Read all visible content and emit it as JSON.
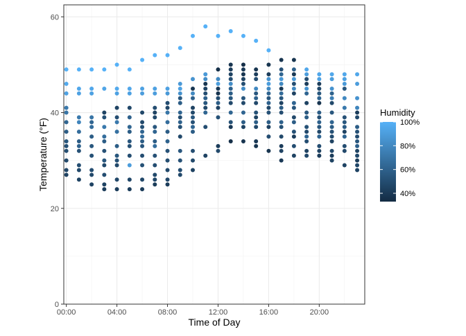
{
  "chart_data": {
    "type": "scatter",
    "xlabel": "Time of Day",
    "ylabel": "Temperature (°F)",
    "xlim": [
      -0.2,
      23.6
    ],
    "ylim": [
      0,
      62.5
    ],
    "x_ticks": [
      0,
      4,
      8,
      12,
      16,
      20
    ],
    "x_tick_labels": [
      "00:00",
      "04:00",
      "08:00",
      "12:00",
      "16:00",
      "20:00"
    ],
    "y_ticks": [
      0,
      20,
      40,
      60
    ],
    "y_tick_labels": [
      "0",
      "20",
      "40",
      "60"
    ],
    "grid": true,
    "legend": {
      "title": "Humidity",
      "position": "right",
      "breaks": [
        100,
        80,
        60,
        40
      ],
      "labels": [
        "100%",
        "80%",
        "60%",
        "40%"
      ],
      "range": [
        33,
        100
      ],
      "color_low": "#132B43",
      "color_high": "#56B1F7"
    },
    "points_by_hour": [
      {
        "x": 0,
        "y": [
          49,
          46,
          44,
          41,
          40,
          38,
          36,
          34,
          33,
          32,
          30,
          28,
          27
        ],
        "h": [
          100,
          96,
          92,
          72,
          70,
          62,
          58,
          55,
          52,
          50,
          48,
          47,
          45
        ]
      },
      {
        "x": 1,
        "y": [
          49,
          45,
          44,
          39,
          38,
          36,
          34,
          33,
          32,
          29,
          28,
          26
        ],
        "h": [
          100,
          95,
          92,
          72,
          78,
          66,
          58,
          60,
          52,
          50,
          48,
          45
        ]
      },
      {
        "x": 2,
        "y": [
          49,
          45,
          44,
          39,
          38,
          37,
          35,
          33,
          31,
          28,
          27,
          25
        ],
        "h": [
          100,
          95,
          92,
          70,
          62,
          66,
          58,
          55,
          52,
          50,
          48,
          45
        ]
      },
      {
        "x": 3,
        "y": [
          49,
          45,
          40,
          39,
          37,
          35,
          34,
          32,
          30,
          29,
          27,
          25,
          24
        ],
        "h": [
          100,
          94,
          45,
          52,
          72,
          66,
          58,
          52,
          55,
          48,
          50,
          45,
          42
        ]
      },
      {
        "x": 4,
        "y": [
          50,
          45,
          44,
          41,
          39,
          38,
          36,
          33,
          31,
          30,
          29,
          26,
          24
        ],
        "h": [
          100,
          96,
          92,
          45,
          50,
          72,
          68,
          58,
          55,
          52,
          48,
          47,
          42
        ]
      },
      {
        "x": 5,
        "y": [
          49,
          45,
          44,
          41,
          39,
          37,
          36,
          34,
          33,
          31,
          29,
          26,
          24
        ],
        "h": [
          100,
          95,
          92,
          47,
          60,
          62,
          58,
          55,
          52,
          50,
          90,
          47,
          42
        ]
      },
      {
        "x": 6,
        "y": [
          51,
          45,
          44,
          40,
          38,
          37,
          36,
          35,
          34,
          33,
          31,
          29,
          26,
          24
        ],
        "h": [
          100,
          92,
          90,
          47,
          48,
          52,
          62,
          66,
          58,
          55,
          50,
          52,
          47,
          42
        ]
      },
      {
        "x": 7,
        "y": [
          52,
          45,
          44,
          41,
          40,
          39,
          37,
          36,
          34,
          33,
          31,
          29,
          27,
          26,
          25
        ],
        "h": [
          100,
          92,
          90,
          50,
          45,
          48,
          55,
          62,
          58,
          66,
          52,
          50,
          48,
          47,
          42
        ]
      },
      {
        "x": 8,
        "y": [
          52,
          45,
          44,
          42,
          41,
          40,
          38,
          36,
          34,
          32,
          30,
          28,
          26,
          25
        ],
        "h": [
          100,
          92,
          88,
          50,
          47,
          70,
          66,
          58,
          60,
          52,
          50,
          48,
          47,
          42
        ]
      },
      {
        "x": 9,
        "y": [
          53.5,
          46,
          45,
          44,
          43,
          42,
          40,
          39,
          38,
          37,
          35,
          32,
          30,
          28,
          27
        ],
        "h": [
          100,
          88,
          92,
          84,
          55,
          58,
          62,
          50,
          60,
          52,
          48,
          55,
          52,
          50,
          48
        ]
      },
      {
        "x": 10,
        "y": [
          56,
          47,
          45,
          44,
          43,
          41,
          40,
          39,
          38,
          37,
          36,
          32,
          30,
          28
        ],
        "h": [
          100,
          85,
          38,
          80,
          60,
          45,
          48,
          55,
          52,
          62,
          58,
          50,
          48,
          45
        ]
      },
      {
        "x": 11,
        "y": [
          58,
          48,
          47,
          46,
          45,
          44,
          43,
          42,
          41,
          40,
          37,
          31
        ],
        "h": [
          100,
          88,
          82,
          38,
          45,
          50,
          60,
          55,
          48,
          62,
          50,
          45
        ]
      },
      {
        "x": 12,
        "y": [
          56,
          49,
          47,
          46,
          45,
          44,
          43,
          42,
          41,
          39,
          33,
          32
        ],
        "h": [
          100,
          35,
          80,
          90,
          40,
          38,
          50,
          58,
          45,
          52,
          42,
          48
        ]
      },
      {
        "x": 13,
        "y": [
          57,
          50,
          49,
          48,
          47,
          46,
          45,
          44,
          43,
          42,
          40,
          38,
          37,
          34
        ],
        "h": [
          100,
          38,
          42,
          45,
          50,
          82,
          60,
          58,
          55,
          48,
          62,
          52,
          40,
          35
        ]
      },
      {
        "x": 14,
        "y": [
          56,
          50,
          49,
          48,
          47,
          46,
          45,
          43,
          42,
          40,
          38,
          37,
          34
        ],
        "h": [
          100,
          35,
          40,
          38,
          45,
          50,
          82,
          55,
          48,
          62,
          58,
          45,
          38
        ]
      },
      {
        "x": 15,
        "y": [
          55,
          49,
          48,
          47,
          45,
          44,
          43,
          42,
          40,
          39,
          38,
          37,
          34,
          33
        ],
        "h": [
          100,
          38,
          42,
          50,
          80,
          55,
          60,
          48,
          52,
          45,
          58,
          48,
          40,
          38
        ]
      },
      {
        "x": 16,
        "y": [
          53,
          50,
          48,
          47,
          46,
          45,
          44,
          43,
          42,
          41,
          40,
          38,
          37,
          35,
          32
        ],
        "h": [
          100,
          38,
          42,
          85,
          90,
          80,
          62,
          55,
          60,
          48,
          52,
          58,
          45,
          50,
          38
        ]
      },
      {
        "x": 17,
        "y": [
          51,
          49,
          48,
          47,
          46,
          45,
          44,
          43,
          42,
          41,
          40,
          38,
          37,
          35,
          33,
          32,
          30
        ],
        "h": [
          38,
          52,
          62,
          88,
          80,
          40,
          65,
          55,
          45,
          58,
          50,
          60,
          52,
          48,
          42,
          45,
          40
        ]
      },
      {
        "x": 18,
        "y": [
          51,
          49,
          48,
          47,
          46,
          45,
          44,
          42,
          41,
          39,
          38,
          36,
          35,
          33,
          31
        ],
        "h": [
          38,
          60,
          40,
          88,
          50,
          80,
          45,
          62,
          55,
          48,
          58,
          52,
          42,
          50,
          45
        ]
      },
      {
        "x": 19,
        "y": [
          49,
          48,
          47,
          46,
          45,
          44,
          42,
          40,
          39,
          37,
          36,
          35,
          34,
          32,
          31
        ],
        "h": [
          95,
          90,
          50,
          42,
          85,
          62,
          45,
          55,
          58,
          52,
          48,
          62,
          50,
          45,
          48
        ]
      },
      {
        "x": 20,
        "y": [
          48,
          47,
          46,
          45,
          44,
          43,
          42,
          40,
          39,
          38,
          37,
          36,
          35,
          33,
          32,
          31
        ],
        "h": [
          95,
          92,
          42,
          48,
          55,
          62,
          38,
          58,
          52,
          60,
          55,
          48,
          62,
          50,
          45,
          42
        ]
      },
      {
        "x": 21,
        "y": [
          48,
          47,
          45,
          44,
          43,
          42,
          40,
          38,
          37,
          36,
          35,
          34,
          32,
          31,
          30
        ],
        "h": [
          95,
          90,
          85,
          60,
          75,
          48,
          55,
          62,
          58,
          52,
          50,
          45,
          48,
          42,
          45
        ]
      },
      {
        "x": 22,
        "y": [
          48,
          47,
          46,
          45,
          43,
          41,
          39,
          38,
          37,
          36,
          35,
          33,
          32,
          29
        ],
        "h": [
          95,
          92,
          88,
          55,
          80,
          72,
          52,
          55,
          58,
          45,
          62,
          50,
          48,
          45
        ]
      },
      {
        "x": 23,
        "y": [
          48,
          46,
          43,
          41,
          40,
          39,
          37,
          36,
          35,
          34,
          33,
          32,
          31,
          30,
          29,
          28
        ],
        "h": [
          95,
          90,
          85,
          78,
          42,
          48,
          58,
          52,
          50,
          55,
          60,
          45,
          48,
          42,
          47,
          45
        ]
      }
    ]
  }
}
